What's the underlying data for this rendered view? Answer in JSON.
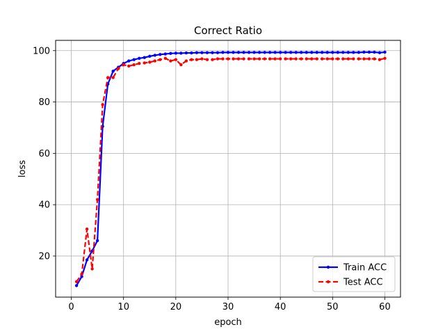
{
  "chart_data": {
    "type": "line",
    "title": "Correct Ratio",
    "xlabel": "epoch",
    "ylabel": "loss",
    "xlim": [
      -3,
      63
    ],
    "ylim": [
      4,
      104
    ],
    "xticks": [
      0,
      10,
      20,
      30,
      40,
      50,
      60
    ],
    "yticks": [
      20,
      40,
      60,
      80,
      100
    ],
    "grid": true,
    "legend_position": "lower-right",
    "x": [
      1,
      2,
      3,
      4,
      5,
      6,
      7,
      8,
      9,
      10,
      11,
      12,
      13,
      14,
      15,
      16,
      17,
      18,
      19,
      20,
      21,
      22,
      23,
      24,
      25,
      26,
      27,
      28,
      29,
      30,
      31,
      32,
      33,
      34,
      35,
      36,
      37,
      38,
      39,
      40,
      41,
      42,
      43,
      44,
      45,
      46,
      47,
      48,
      49,
      50,
      51,
      52,
      53,
      54,
      55,
      56,
      57,
      58,
      59,
      60
    ],
    "series": [
      {
        "name": "Train ACC",
        "color": "#0000ff",
        "style": "solid",
        "values": [
          8.5,
          12,
          18.5,
          22,
          26,
          70.5,
          87,
          92,
          93.5,
          95,
          96,
          96.5,
          97,
          97.3,
          97.8,
          98.2,
          98.5,
          98.7,
          98.9,
          99,
          99,
          99.1,
          99.1,
          99.2,
          99.2,
          99.2,
          99.2,
          99.2,
          99.3,
          99.3,
          99.3,
          99.3,
          99.3,
          99.3,
          99.3,
          99.3,
          99.3,
          99.3,
          99.3,
          99.3,
          99.3,
          99.3,
          99.3,
          99.3,
          99.3,
          99.3,
          99.3,
          99.3,
          99.3,
          99.3,
          99.3,
          99.3,
          99.3,
          99.3,
          99.3,
          99.4,
          99.4,
          99.4,
          99.2,
          99.4
        ]
      },
      {
        "name": "Test ACC",
        "color": "#ff0000",
        "style": "dashed",
        "values": [
          10,
          13,
          30.5,
          15,
          42,
          79,
          89.5,
          89.5,
          93,
          94.5,
          94,
          94.5,
          95,
          95.2,
          95.5,
          96,
          96.5,
          97,
          96,
          96.5,
          94.5,
          96,
          96.5,
          96.5,
          96.8,
          96.5,
          96.5,
          96.8,
          96.8,
          96.8,
          96.8,
          96.8,
          96.8,
          96.8,
          96.8,
          96.8,
          96.8,
          96.8,
          96.8,
          96.8,
          96.8,
          96.8,
          96.8,
          96.8,
          96.8,
          96.8,
          96.8,
          96.8,
          96.8,
          96.8,
          96.8,
          96.8,
          96.8,
          96.8,
          96.8,
          96.8,
          96.8,
          96.8,
          96.5,
          97
        ]
      }
    ]
  }
}
